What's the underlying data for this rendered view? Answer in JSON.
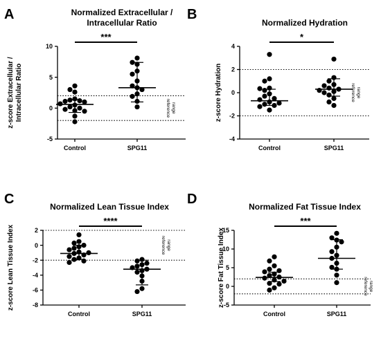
{
  "chart_data": [
    {
      "type": "scatter",
      "panel_label": "A",
      "title_lines": [
        "Normalized Extracellular /",
        "Intracellular Ratio"
      ],
      "ylabel_lines": [
        "z-score Extracellular /",
        "Intracellular Ratio"
      ],
      "categories": [
        "Control",
        "SPG11"
      ],
      "ylim": [
        -5,
        10
      ],
      "yticks": [
        -5,
        0,
        5,
        10
      ],
      "reference_lines": [
        -2,
        2
      ],
      "reference_label": [
        "reference",
        "range"
      ],
      "significance": "***",
      "series": [
        {
          "category": "Control",
          "values": [
            3.6,
            3.0,
            2.6,
            1.5,
            1.3,
            1.2,
            1.1,
            1.0,
            0.7,
            0.5,
            0.2,
            0.0,
            -0.2,
            -0.4,
            -0.5,
            -1.3,
            -2.2
          ],
          "median": 0.6,
          "whisker_low": -0.7,
          "whisker_high": 1.4
        },
        {
          "category": "SPG11",
          "values": [
            8.1,
            7.4,
            7.1,
            6.0,
            5.5,
            4.4,
            3.6,
            3.3,
            3.0,
            2.3,
            1.9,
            1.1,
            0.2
          ],
          "median": 3.3,
          "whisker_low": 1.0,
          "whisker_high": 7.4
        }
      ]
    },
    {
      "type": "scatter",
      "panel_label": "B",
      "title_lines": [
        "Normalized Hydration"
      ],
      "ylabel_lines": [
        "z-score Hydration"
      ],
      "categories": [
        "Control",
        "SPG11"
      ],
      "ylim": [
        -4,
        4
      ],
      "yticks": [
        -4,
        -2,
        0,
        2,
        4
      ],
      "reference_lines": [
        -2,
        2
      ],
      "reference_label": [
        "reference",
        "range"
      ],
      "significance": "*",
      "series": [
        {
          "category": "Control",
          "values": [
            3.3,
            1.2,
            1.0,
            0.4,
            0.35,
            0.2,
            -0.1,
            -0.3,
            -0.5,
            -0.6,
            -0.8,
            -0.9,
            -1.0,
            -1.1,
            -1.2,
            -1.5
          ],
          "median": -0.7,
          "whisker_low": -1.1,
          "whisker_high": 0.3
        },
        {
          "category": "SPG11",
          "values": [
            2.9,
            1.3,
            1.0,
            0.7,
            0.6,
            0.4,
            0.3,
            0.2,
            0.1,
            0.0,
            -0.2,
            -0.5,
            -0.8,
            -1.1
          ],
          "median": 0.3,
          "whisker_low": -0.3,
          "whisker_high": 1.2
        }
      ]
    },
    {
      "type": "scatter",
      "panel_label": "C",
      "title_lines": [
        "Normalized Lean Tissue Index"
      ],
      "ylabel_lines": [
        "z-score Lean Tissue Index"
      ],
      "categories": [
        "Control",
        "SPG11"
      ],
      "ylim": [
        -8,
        2
      ],
      "yticks": [
        -8,
        -6,
        -4,
        -2,
        0,
        2
      ],
      "reference_lines": [
        -2,
        2
      ],
      "reference_label": [
        "reference",
        "range"
      ],
      "significance": "****",
      "series": [
        {
          "category": "Control",
          "values": [
            1.4,
            0.5,
            0.3,
            0.0,
            -0.2,
            -0.4,
            -0.6,
            -0.9,
            -1.0,
            -1.1,
            -1.3,
            -1.5,
            -1.7,
            -1.9,
            -2.1,
            -2.3
          ],
          "median": -1.1,
          "whisker_low": -1.9,
          "whisker_high": 0.0
        },
        {
          "category": "SPG11",
          "values": [
            -1.9,
            -2.1,
            -2.4,
            -2.6,
            -2.8,
            -3.0,
            -3.2,
            -3.4,
            -3.6,
            -4.1,
            -4.8,
            -5.8,
            -6.2
          ],
          "median": -3.2,
          "whisker_low": -5.3,
          "whisker_high": -2.0
        }
      ]
    },
    {
      "type": "scatter",
      "panel_label": "D",
      "title_lines": [
        "Normalized Fat Tissue Index"
      ],
      "ylabel_lines": [
        "z-score Fat Tissue Index"
      ],
      "categories": [
        "Control",
        "SPG11"
      ],
      "ylim": [
        -5,
        15
      ],
      "yticks": [
        -5,
        0,
        5,
        10,
        15
      ],
      "reference_lines": [
        -2,
        2
      ],
      "reference_label": [
        "reference",
        "range"
      ],
      "significance": "***",
      "series": [
        {
          "category": "Control",
          "values": [
            7.9,
            6.8,
            5.5,
            4.6,
            4.2,
            3.9,
            3.3,
            2.9,
            2.5,
            2.2,
            1.7,
            1.4,
            0.8,
            0.6,
            -0.4,
            -1.0
          ],
          "median": 2.4,
          "whisker_low": 1.3,
          "whisker_high": 3.8
        },
        {
          "category": "SPG11",
          "values": [
            14.2,
            13.0,
            12.4,
            11.9,
            10.5,
            9.3,
            8.3,
            7.5,
            6.2,
            5.1,
            4.6,
            3.0,
            1.0
          ],
          "median": 7.5,
          "whisker_low": 4.6,
          "whisker_high": 12.5
        }
      ]
    }
  ]
}
